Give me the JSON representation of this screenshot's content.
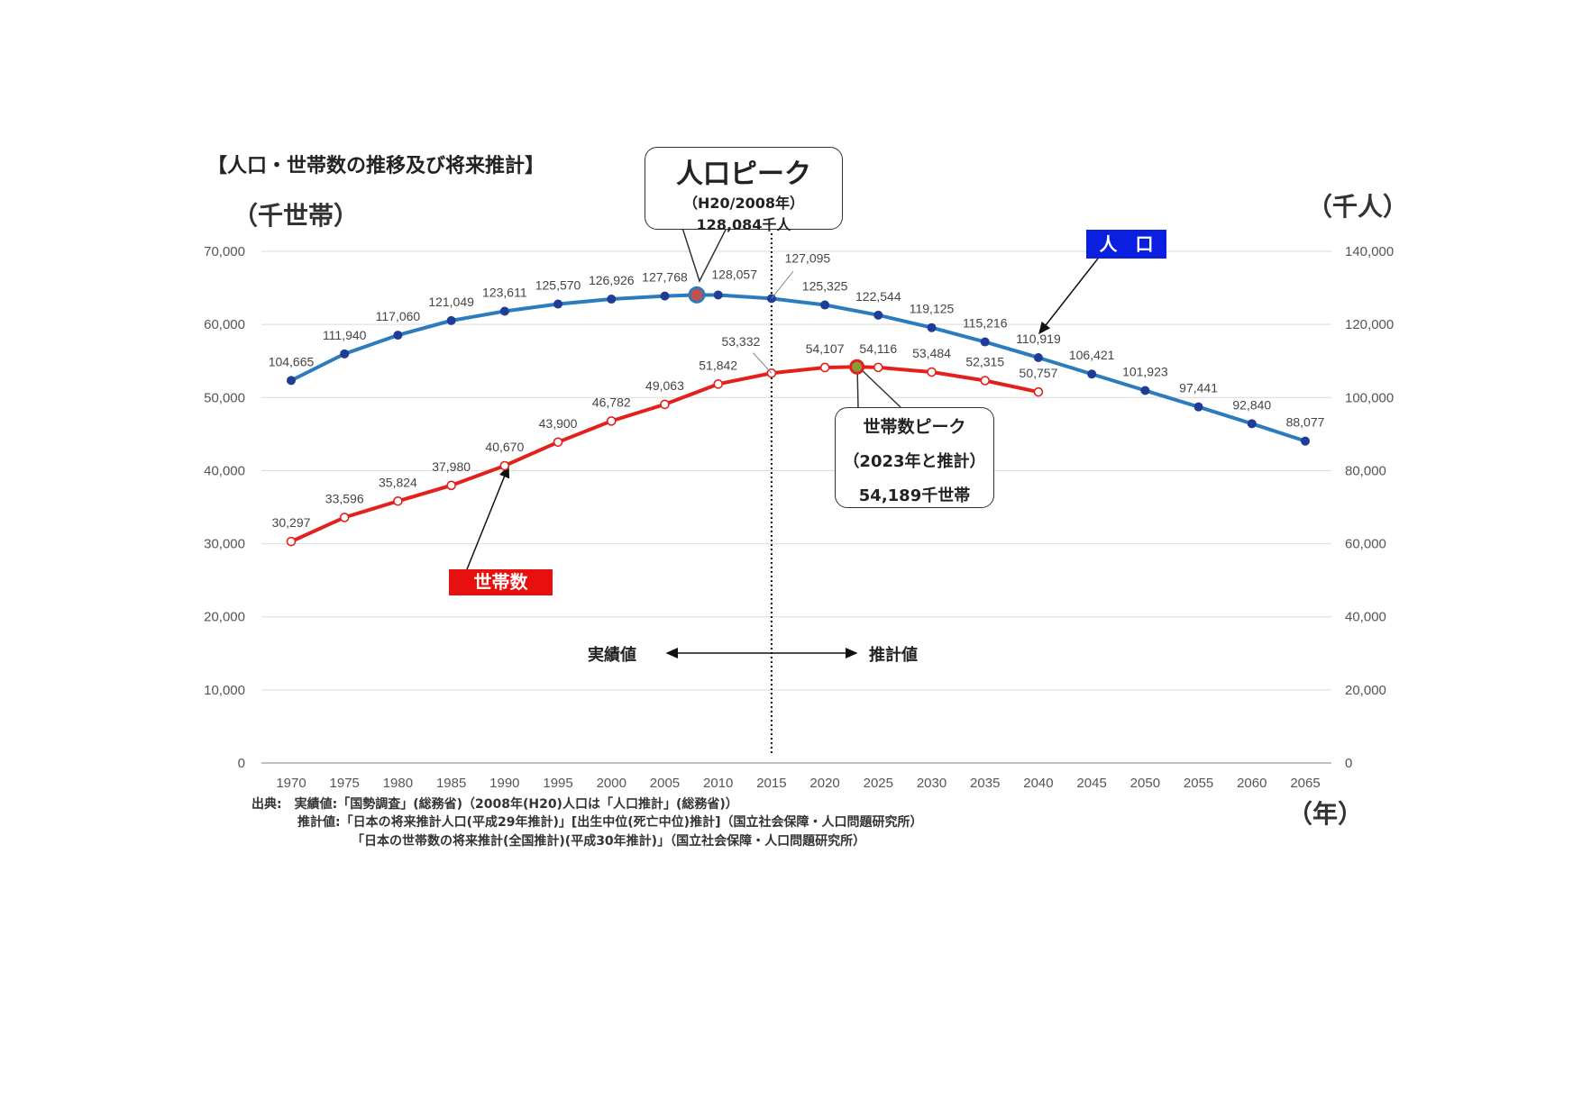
{
  "title": "【人口・世帯数の推移及び将来推計】",
  "units": {
    "left": "（千世帯）",
    "right": "（千人）",
    "x": "（年）"
  },
  "population_peak": {
    "title": "人口ピーク",
    "sub": "（H20/2008年）",
    "value": "128,084千人"
  },
  "household_peak": {
    "title": "世帯数ピーク",
    "sub": "（2023年と推計）",
    "value": "54,189千世帯"
  },
  "legend": {
    "population": "人　口",
    "households": "世帯数"
  },
  "periods": {
    "actual": "実績値",
    "projected": "推計値"
  },
  "source": [
    "出典:　実績値:「国勢調査」(総務省)（2008年(H20)人口は「人口推計」(総務省)）",
    "推計値:「日本の将来推計人口(平成29年推計)」[出生中位(死亡中位)推計]（国立社会保障・人口問題研究所）",
    "「日本の世帯数の将来推計(全国推計)(平成30年推計)」（国立社会保障・人口問題研究所）"
  ],
  "colors": {
    "population_line": "#2b7bbf",
    "population_marker": "#1f3c96",
    "households_line": "#e3211c",
    "population_box": "#0a1fe0",
    "households_box": "#e8100f"
  },
  "chart_data": {
    "type": "line",
    "title": "【人口・世帯数の推移及び将来推計】",
    "xlabel": "（年）",
    "ylabel_left": "（千世帯）",
    "ylabel_right": "（千人）",
    "ylim_left": [
      0,
      70000
    ],
    "ylim_right": [
      0,
      140000
    ],
    "yticks_left": [
      "0",
      "10,000",
      "20,000",
      "30,000",
      "40,000",
      "50,000",
      "60,000",
      "70,000"
    ],
    "yticks_right": [
      "0",
      "20,000",
      "40,000",
      "60,000",
      "80,000",
      "100,000",
      "120,000",
      "140,000"
    ],
    "xticks": [
      "1970",
      "1975",
      "1980",
      "1985",
      "1990",
      "1995",
      "2000",
      "2005",
      "2010",
      "2015",
      "2020",
      "2025",
      "2030",
      "2035",
      "2040",
      "2045",
      "2050",
      "2055",
      "2060",
      "2065"
    ],
    "grid": true,
    "series": [
      {
        "name": "人口",
        "axis": "right",
        "x": [
          1970,
          1975,
          1980,
          1985,
          1990,
          1995,
          2000,
          2005,
          2008,
          2010,
          2015,
          2020,
          2025,
          2030,
          2035,
          2040,
          2045,
          2050,
          2055,
          2060,
          2065
        ],
        "values": [
          104665,
          111940,
          117060,
          121049,
          123611,
          125570,
          126926,
          127768,
          128084,
          128057,
          127095,
          125325,
          122544,
          119125,
          115216,
          110919,
          106421,
          101923,
          97441,
          92840,
          88077
        ],
        "labels": [
          "104,665",
          "111,940",
          "117,060",
          "121,049",
          "123,611",
          "125,570",
          "126,926",
          "127,768",
          "",
          "128,057",
          "127,095",
          "125,325",
          "122,544",
          "119,125",
          "115,216",
          "110,919",
          "106,421",
          "101,923",
          "97,441",
          "92,840",
          "88,077"
        ],
        "peak_index": 8
      },
      {
        "name": "世帯数",
        "axis": "left",
        "x": [
          1970,
          1975,
          1980,
          1985,
          1990,
          1995,
          2000,
          2005,
          2010,
          2015,
          2020,
          2023,
          2025,
          2030,
          2035,
          2040
        ],
        "values": [
          30297,
          33596,
          35824,
          37980,
          40670,
          43900,
          46782,
          49063,
          51842,
          53332,
          54107,
          54189,
          54116,
          53484,
          52315,
          50757
        ],
        "labels": [
          "30,297",
          "33,596",
          "35,824",
          "37,980",
          "40,670",
          "43,900",
          "46,782",
          "49,063",
          "51,842",
          "53,332",
          "54,107",
          "",
          "54,116",
          "53,484",
          "52,315",
          "50,757"
        ],
        "peak_index": 11
      }
    ],
    "divider_year": 2015
  }
}
